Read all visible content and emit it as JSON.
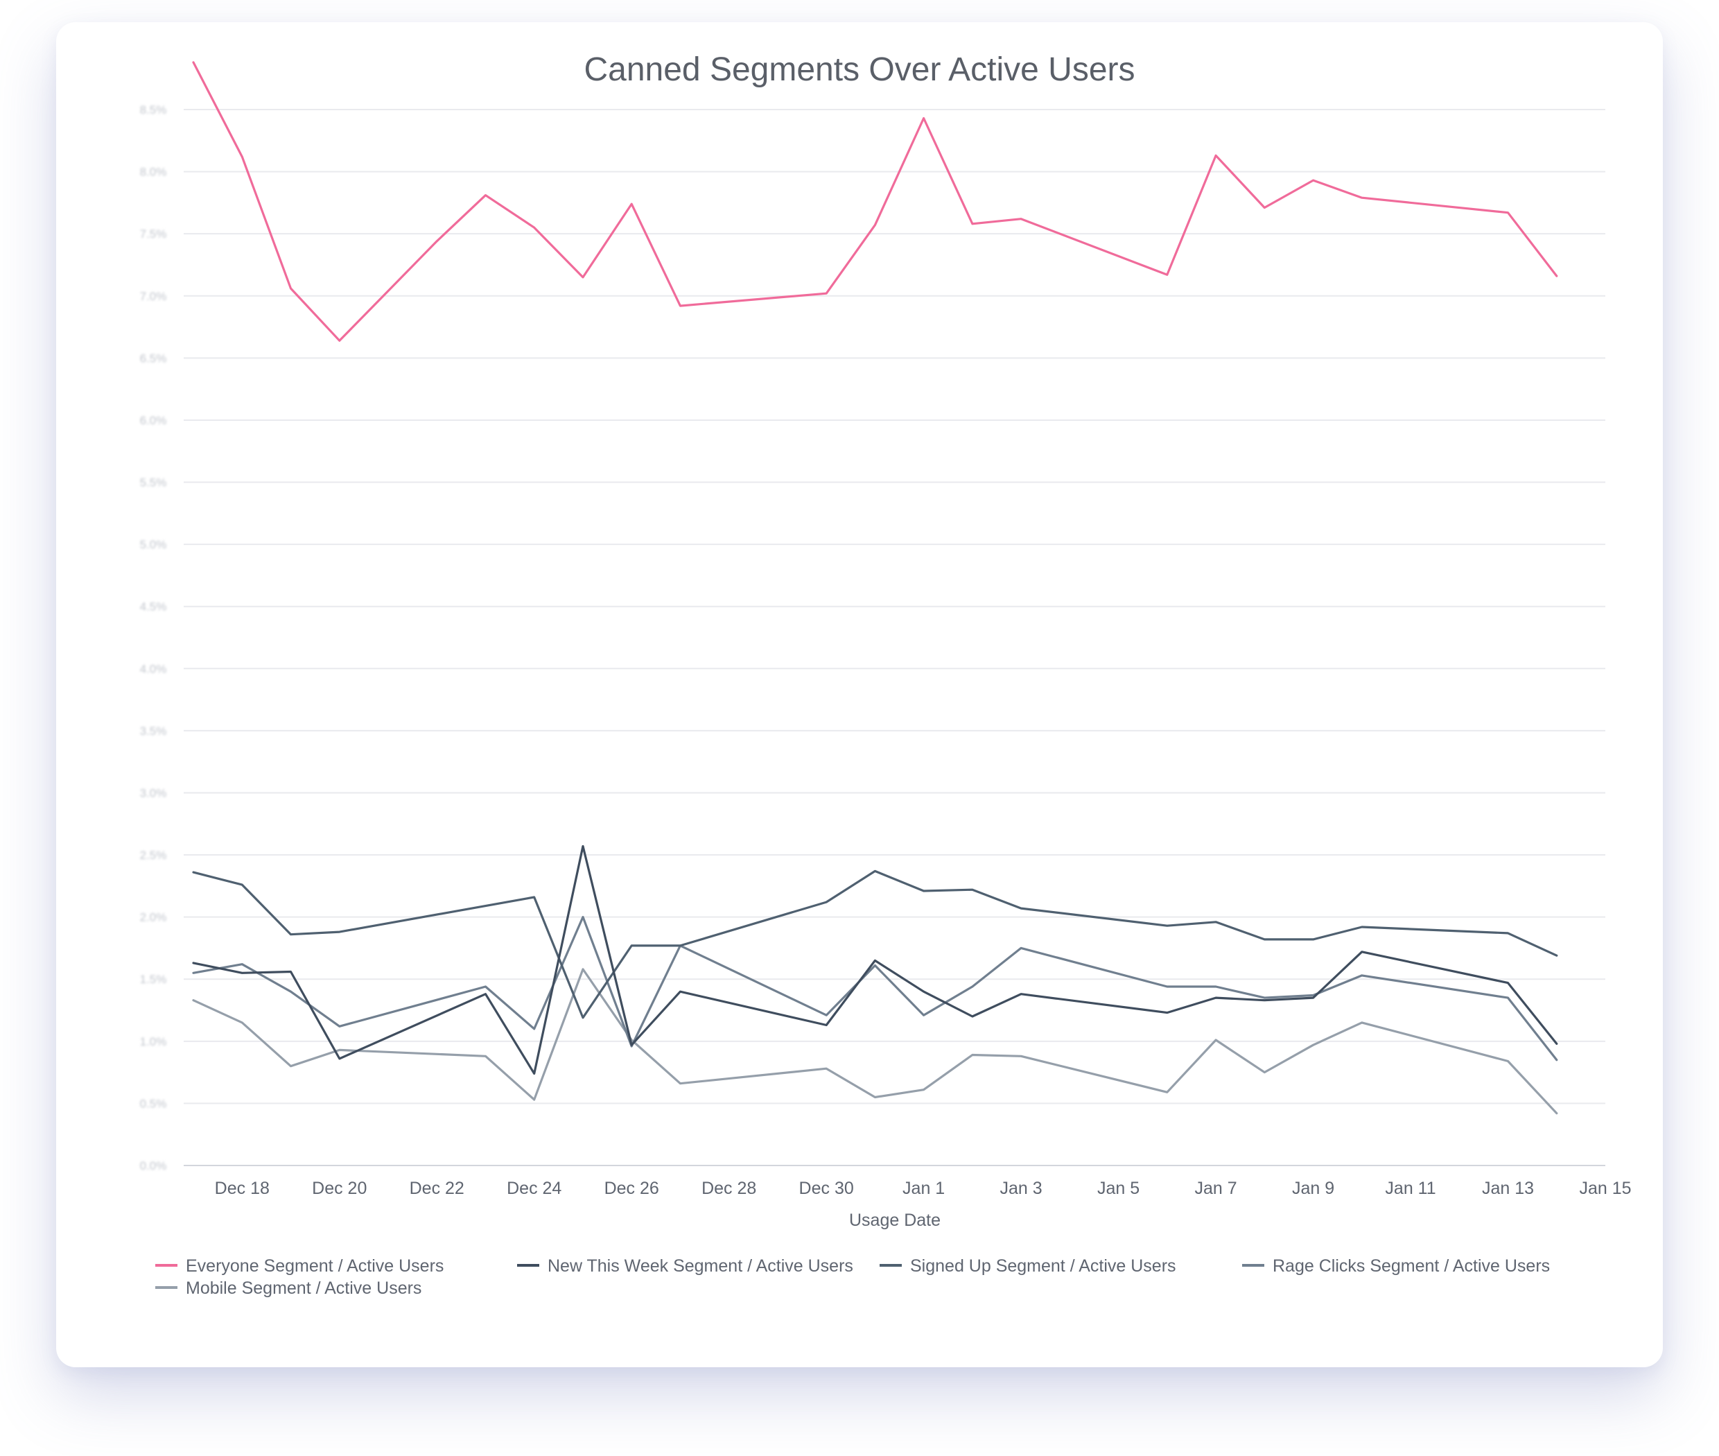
{
  "chart_data": {
    "type": "line",
    "title": "Canned Segments Over Active Users",
    "xlabel": "Usage Date",
    "ylabel": "",
    "x_ticks": [
      "Dec 18",
      "Dec 20",
      "Dec 22",
      "Dec 24",
      "Dec 26",
      "Dec 28",
      "Dec 30",
      "Jan 1",
      "Jan 3",
      "Jan 5",
      "Jan 7",
      "Jan 9",
      "Jan 11",
      "Jan 13",
      "Jan 15"
    ],
    "x_tick_days": [
      1,
      3,
      5,
      7,
      9,
      11,
      13,
      15,
      17,
      19,
      21,
      23,
      25,
      27,
      29
    ],
    "xlim": [
      -0.2,
      29
    ],
    "ylim": [
      0,
      8.5
    ],
    "y_tick_values": [
      0,
      0.5,
      1,
      1.5,
      2,
      2.5,
      3,
      3.5,
      4,
      4.5,
      5,
      5.5,
      6,
      6.5,
      7,
      7.5,
      8,
      8.5
    ],
    "y_tick_labels": [
      "0.0%",
      "0.5%",
      "1.0%",
      "1.5%",
      "2.0%",
      "2.5%",
      "3.0%",
      "3.5%",
      "4.0%",
      "4.5%",
      "5.0%",
      "5.5%",
      "6.0%",
      "6.5%",
      "7.0%",
      "7.5%",
      "8.0%",
      "8.5%"
    ],
    "grid": true,
    "legend_position": "bottom",
    "series": [
      {
        "name": "Everyone Segment / Active Users",
        "color": "#f06b9a",
        "x": [
          0,
          1,
          2,
          3,
          4,
          5,
          6,
          7,
          8,
          9,
          10,
          13,
          14,
          15,
          16,
          17,
          20,
          21,
          22,
          23,
          24,
          27,
          28
        ],
        "values": [
          8.88,
          8.12,
          7.06,
          6.64,
          7.04,
          7.44,
          7.81,
          7.55,
          7.15,
          7.74,
          6.92,
          7.02,
          7.57,
          8.43,
          7.58,
          7.62,
          7.17,
          8.13,
          7.71,
          7.93,
          7.79,
          7.67,
          7.16
        ]
      },
      {
        "name": "New This Week Segment / Active Users",
        "color": "#3f4d5e",
        "x": [
          0,
          1,
          2,
          3,
          6,
          7,
          8,
          9,
          10,
          13,
          14,
          15,
          16,
          17,
          20,
          21,
          22,
          23,
          24,
          27,
          28
        ],
        "values": [
          1.63,
          1.55,
          1.56,
          0.86,
          1.38,
          0.74,
          2.57,
          0.97,
          1.4,
          1.13,
          1.65,
          1.4,
          1.2,
          1.38,
          1.23,
          1.35,
          1.33,
          1.35,
          1.72,
          1.47,
          0.98
        ]
      },
      {
        "name": "Signed Up Segment / Active Users",
        "color": "#4f6070",
        "x": [
          0,
          1,
          2,
          3,
          7,
          8,
          9,
          10,
          13,
          14,
          15,
          16,
          17,
          20,
          21,
          22,
          23,
          24,
          27,
          28
        ],
        "values": [
          2.36,
          2.26,
          1.86,
          1.88,
          2.16,
          1.19,
          1.77,
          1.77,
          2.12,
          2.37,
          2.21,
          2.22,
          2.07,
          1.93,
          1.96,
          1.82,
          1.82,
          1.92,
          1.87,
          1.69
        ]
      },
      {
        "name": "Rage Clicks Segment / Active Users",
        "color": "#707f8f",
        "x": [
          0,
          1,
          2,
          3,
          6,
          7,
          8,
          9,
          10,
          13,
          14,
          15,
          16,
          17,
          20,
          21,
          22,
          23,
          24,
          27,
          28
        ],
        "values": [
          1.55,
          1.62,
          1.4,
          1.12,
          1.44,
          1.1,
          2.0,
          0.96,
          1.77,
          1.21,
          1.61,
          1.21,
          1.44,
          1.75,
          1.44,
          1.44,
          1.35,
          1.37,
          1.53,
          1.35,
          0.85
        ]
      },
      {
        "name": "Mobile Segment / Active Users",
        "color": "#959faa",
        "x": [
          0,
          1,
          2,
          3,
          6,
          7,
          8,
          9,
          10,
          13,
          14,
          15,
          16,
          17,
          20,
          21,
          22,
          23,
          24,
          27,
          28
        ],
        "values": [
          1.33,
          1.15,
          0.8,
          0.93,
          0.88,
          0.53,
          1.58,
          1.01,
          0.66,
          0.78,
          0.55,
          0.61,
          0.89,
          0.88,
          0.59,
          1.01,
          0.75,
          0.97,
          1.15,
          0.84,
          0.42
        ]
      }
    ]
  }
}
